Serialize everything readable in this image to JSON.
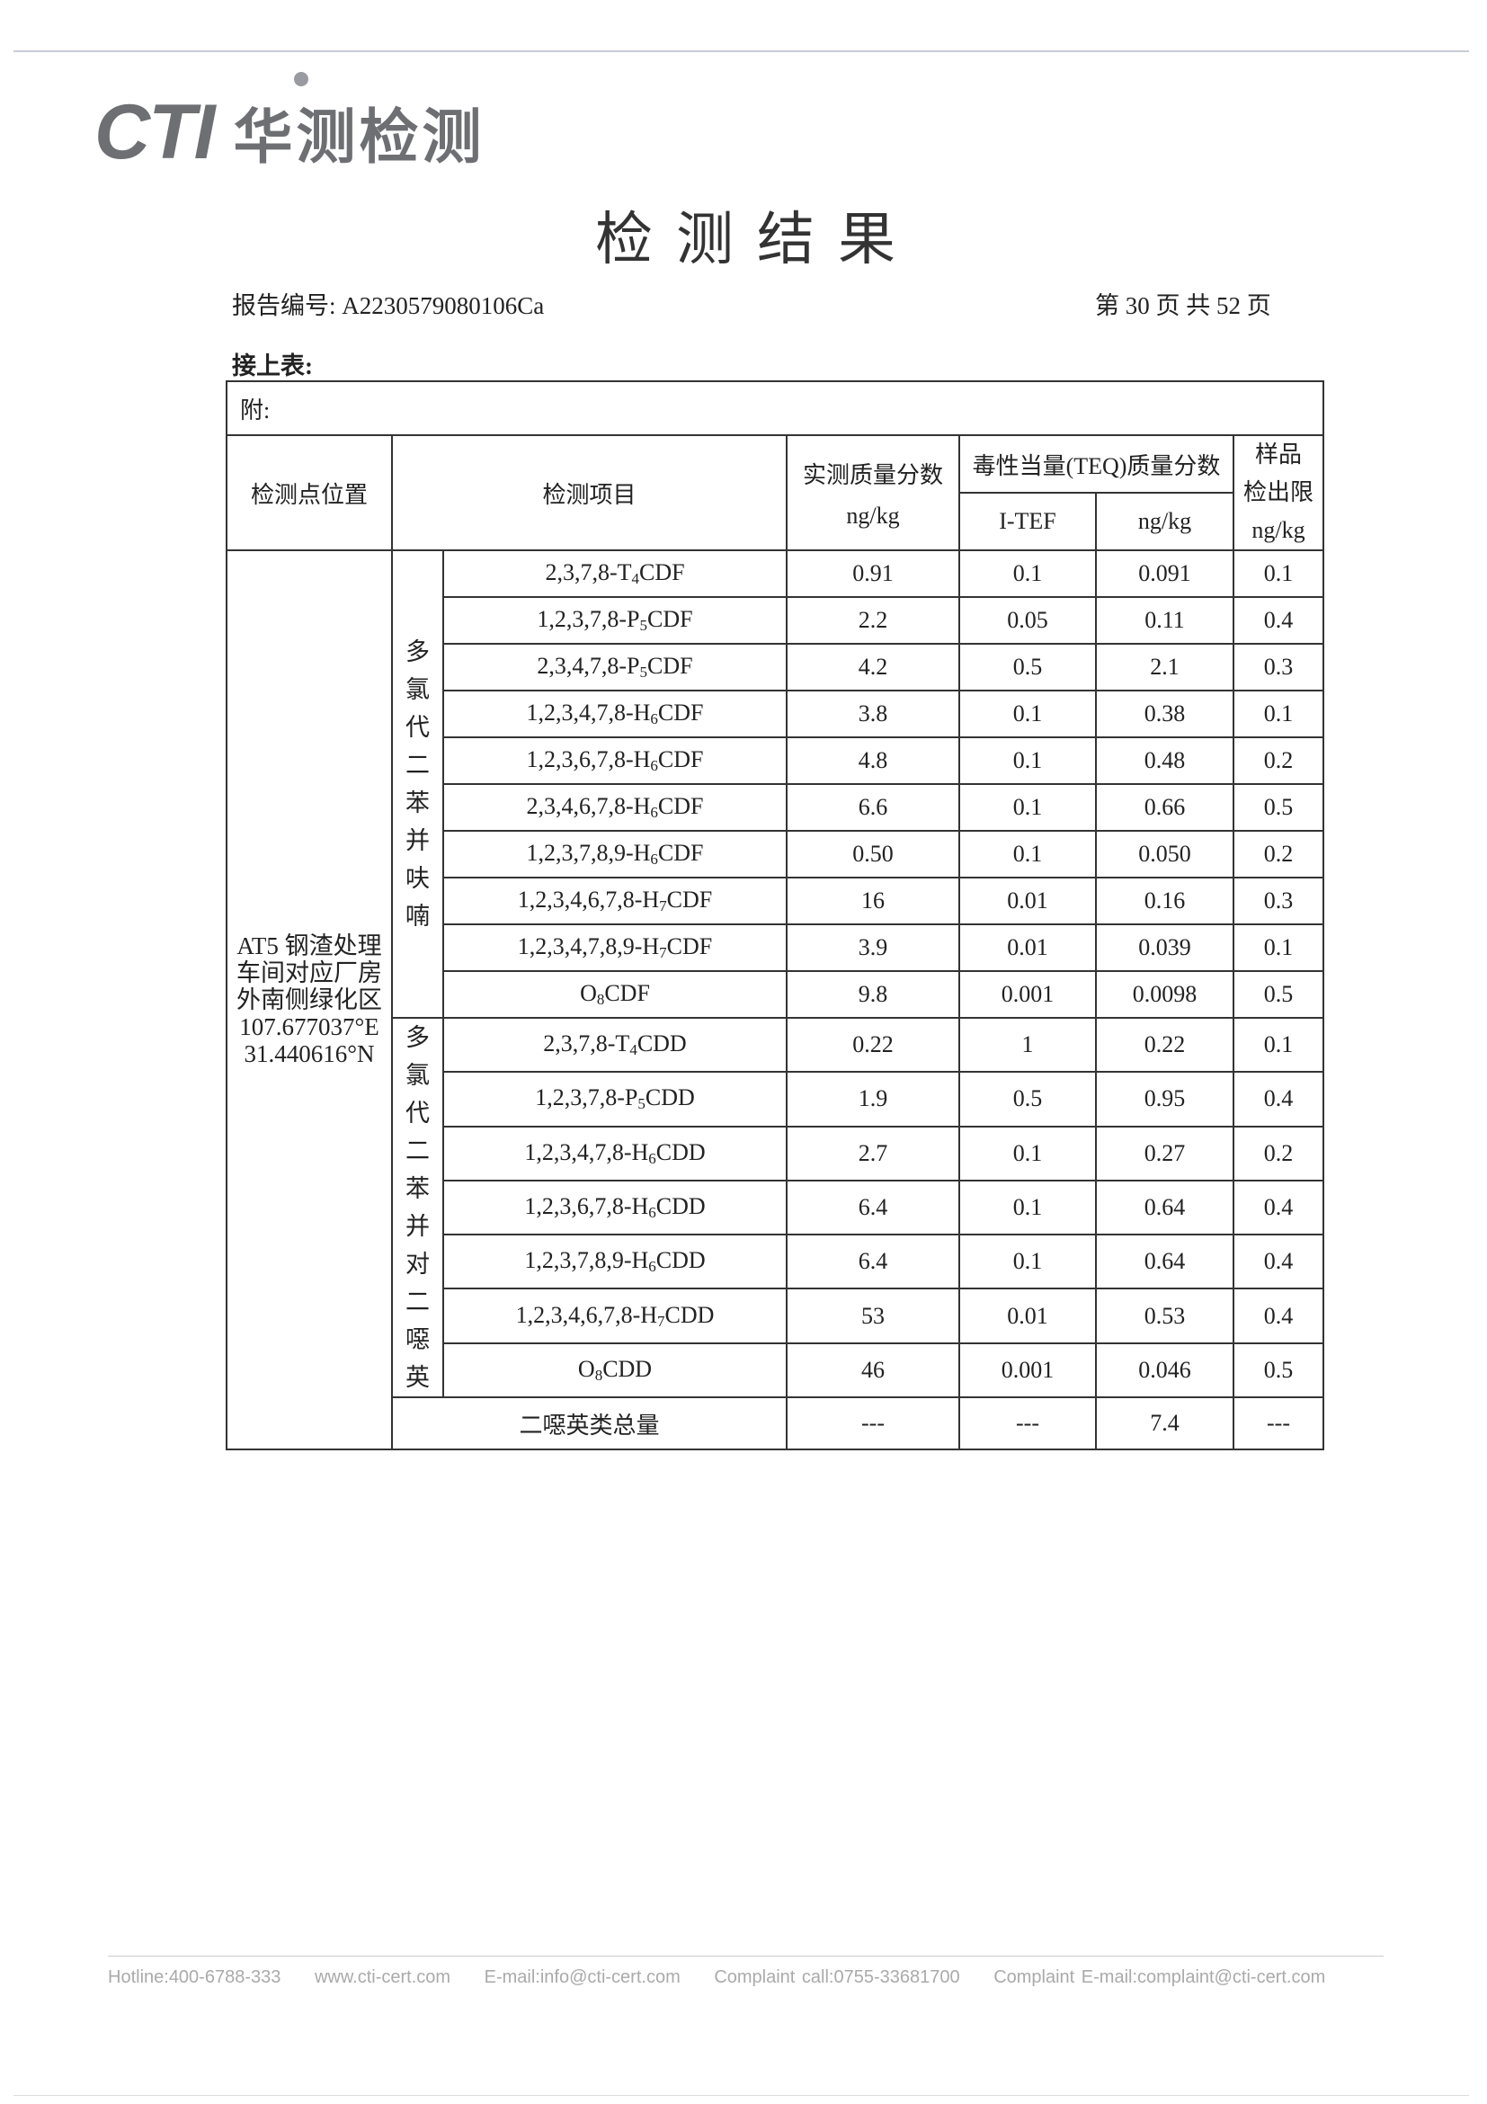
{
  "header": {
    "logo_text": "CTI 华测检测",
    "logo_latin": "CTI",
    "logo_cn": "华测检测"
  },
  "title": "检测结果",
  "report_no": "报告编号: A2230579080106Ca",
  "page_info": "第 30 页  共 52 页",
  "continued": "接上表:",
  "table": {
    "note": "附:",
    "headers": {
      "location": "检测点位置",
      "item": "检测项目",
      "measured": "实测质量分数",
      "measured_unit": "ng/kg",
      "teq": "毒性当量(TEQ)质量分数",
      "itef": "I-TEF",
      "teq_unit": "ng/kg",
      "limit1": "样品",
      "limit2": "检出限",
      "limit_unit": "ng/kg"
    },
    "location": [
      "AT5 钢渣处理",
      "车间对应厂房",
      "外南侧绿化区",
      "107.677037°E",
      "31.440616°N"
    ],
    "group1": "多氯代二苯并呋喃",
    "group2": "多氯代二苯并对二噁英",
    "pcdf": [
      {
        "pre": "2,3,7,8-T",
        "sub": "4",
        "post": "CDF",
        "measured": "0.91",
        "itef": "0.1",
        "teq": "0.091",
        "limit": "0.1"
      },
      {
        "pre": "1,2,3,7,8-P",
        "sub": "5",
        "post": "CDF",
        "measured": "2.2",
        "itef": "0.05",
        "teq": "0.11",
        "limit": "0.4"
      },
      {
        "pre": "2,3,4,7,8-P",
        "sub": "5",
        "post": "CDF",
        "measured": "4.2",
        "itef": "0.5",
        "teq": "2.1",
        "limit": "0.3"
      },
      {
        "pre": "1,2,3,4,7,8-H",
        "sub": "6",
        "post": "CDF",
        "measured": "3.8",
        "itef": "0.1",
        "teq": "0.38",
        "limit": "0.1"
      },
      {
        "pre": "1,2,3,6,7,8-H",
        "sub": "6",
        "post": "CDF",
        "measured": "4.8",
        "itef": "0.1",
        "teq": "0.48",
        "limit": "0.2"
      },
      {
        "pre": "2,3,4,6,7,8-H",
        "sub": "6",
        "post": "CDF",
        "measured": "6.6",
        "itef": "0.1",
        "teq": "0.66",
        "limit": "0.5"
      },
      {
        "pre": "1,2,3,7,8,9-H",
        "sub": "6",
        "post": "CDF",
        "measured": "0.50",
        "itef": "0.1",
        "teq": "0.050",
        "limit": "0.2"
      },
      {
        "pre": "1,2,3,4,6,7,8-H",
        "sub": "7",
        "post": "CDF",
        "measured": "16",
        "itef": "0.01",
        "teq": "0.16",
        "limit": "0.3"
      },
      {
        "pre": "1,2,3,4,7,8,9-H",
        "sub": "7",
        "post": "CDF",
        "measured": "3.9",
        "itef": "0.01",
        "teq": "0.039",
        "limit": "0.1"
      },
      {
        "pre": "O",
        "sub": "8",
        "post": "CDF",
        "measured": "9.8",
        "itef": "0.001",
        "teq": "0.0098",
        "limit": "0.5"
      }
    ],
    "pcdd": [
      {
        "pre": "2,3,7,8-T",
        "sub": "4",
        "post": "CDD",
        "measured": "0.22",
        "itef": "1",
        "teq": "0.22",
        "limit": "0.1"
      },
      {
        "pre": "1,2,3,7,8-P",
        "sub": "5",
        "post": "CDD",
        "measured": "1.9",
        "itef": "0.5",
        "teq": "0.95",
        "limit": "0.4"
      },
      {
        "pre": "1,2,3,4,7,8-H",
        "sub": "6",
        "post": "CDD",
        "measured": "2.7",
        "itef": "0.1",
        "teq": "0.27",
        "limit": "0.2"
      },
      {
        "pre": "1,2,3,6,7,8-H",
        "sub": "6",
        "post": "CDD",
        "measured": "6.4",
        "itef": "0.1",
        "teq": "0.64",
        "limit": "0.4"
      },
      {
        "pre": "1,2,3,7,8,9-H",
        "sub": "6",
        "post": "CDD",
        "measured": "6.4",
        "itef": "0.1",
        "teq": "0.64",
        "limit": "0.4"
      },
      {
        "pre": "1,2,3,4,6,7,8-H",
        "sub": "7",
        "post": "CDD",
        "measured": "53",
        "itef": "0.01",
        "teq": "0.53",
        "limit": "0.4"
      },
      {
        "pre": "O",
        "sub": "8",
        "post": "CDD",
        "measured": "46",
        "itef": "0.001",
        "teq": "0.046",
        "limit": "0.5"
      }
    ],
    "total": {
      "label": "二噁英类总量",
      "measured": "---",
      "itef": "---",
      "teq": "7.4",
      "limit": "---"
    }
  },
  "footer": {
    "hotline": "Hotline:400-6788-333",
    "web": "www.cti-cert.com",
    "email": "E-mail:info@cti-cert.com",
    "complaint_call": "Complaint call:0755-33681700",
    "complaint_email": "Complaint E-mail:complaint@cti-cert.com"
  }
}
